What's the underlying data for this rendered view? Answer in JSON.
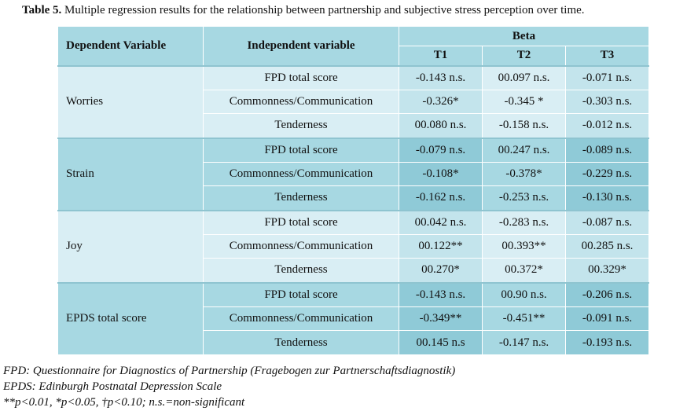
{
  "caption": {
    "label": "Table 5.",
    "text": " Multiple regression results for the relationship between partnership and subjective stress perception over time."
  },
  "header": {
    "dependent": "Dependent Variable",
    "independent": "Independent variable",
    "beta": "Beta",
    "t1": "T1",
    "t2": "T2",
    "t3": "T3"
  },
  "groups": [
    {
      "dependent": "Worries",
      "rows": [
        {
          "independent": "FPD total score",
          "t1": "-0.143 n.s.",
          "t2": "00.097 n.s.",
          "t3": "-0.071 n.s."
        },
        {
          "independent": "Commonness/Communication",
          "t1": "-0.326*",
          "t2": "-0.345 *",
          "t3": "-0.303 n.s."
        },
        {
          "independent": "Tenderness",
          "t1": "00.080 n.s.",
          "t2": "-0.158 n.s.",
          "t3": "-0.012 n.s."
        }
      ]
    },
    {
      "dependent": "Strain",
      "rows": [
        {
          "independent": "FPD total score",
          "t1": "-0.079 n.s.",
          "t2": "00.247 n.s.",
          "t3": "-0.089 n.s."
        },
        {
          "independent": "Commonness/Communication",
          "t1": "-0.108*",
          "t2": "-0.378*",
          "t3": "-0.229 n.s."
        },
        {
          "independent": "Tenderness",
          "t1": "-0.162 n.s.",
          "t2": "-0.253 n.s.",
          "t3": "-0.130 n.s."
        }
      ]
    },
    {
      "dependent": "Joy",
      "rows": [
        {
          "independent": "FPD total score",
          "t1": "00.042 n.s.",
          "t2": "-0.283 n.s.",
          "t3": "-0.087 n.s."
        },
        {
          "independent": "Commonness/Communication",
          "t1": "00.122**",
          "t2": "00.393**",
          "t3": "00.285 n.s."
        },
        {
          "independent": "Tenderness",
          "t1": "00.270*",
          "t2": "00.372*",
          "t3": "00.329*"
        }
      ]
    },
    {
      "dependent": "EPDS total score",
      "rows": [
        {
          "independent": "FPD total score",
          "t1": "-0.143 n.s.",
          "t2": "00.90 n.s.",
          "t3": "-0.206 n.s."
        },
        {
          "independent": "Commonness/Communication",
          "t1": "-0.349**",
          "t2": "-0.451**",
          "t3": "-0.091 n.s."
        },
        {
          "independent": "Tenderness",
          "t1": "00.145 n.s",
          "t2": "-0.147 n.s.",
          "t3": "-0.193 n.s."
        }
      ]
    }
  ],
  "notes": [
    "FPD: Questionnaire for Diagnostics of Partnership (Fragebogen zur Partnerschaftsdiagnostik)",
    "EPDS: Edinburgh Postnatal Depression Scale",
    "**p<0.01, *p<0.05, †p<0.10; n.s.=non-significant"
  ]
}
